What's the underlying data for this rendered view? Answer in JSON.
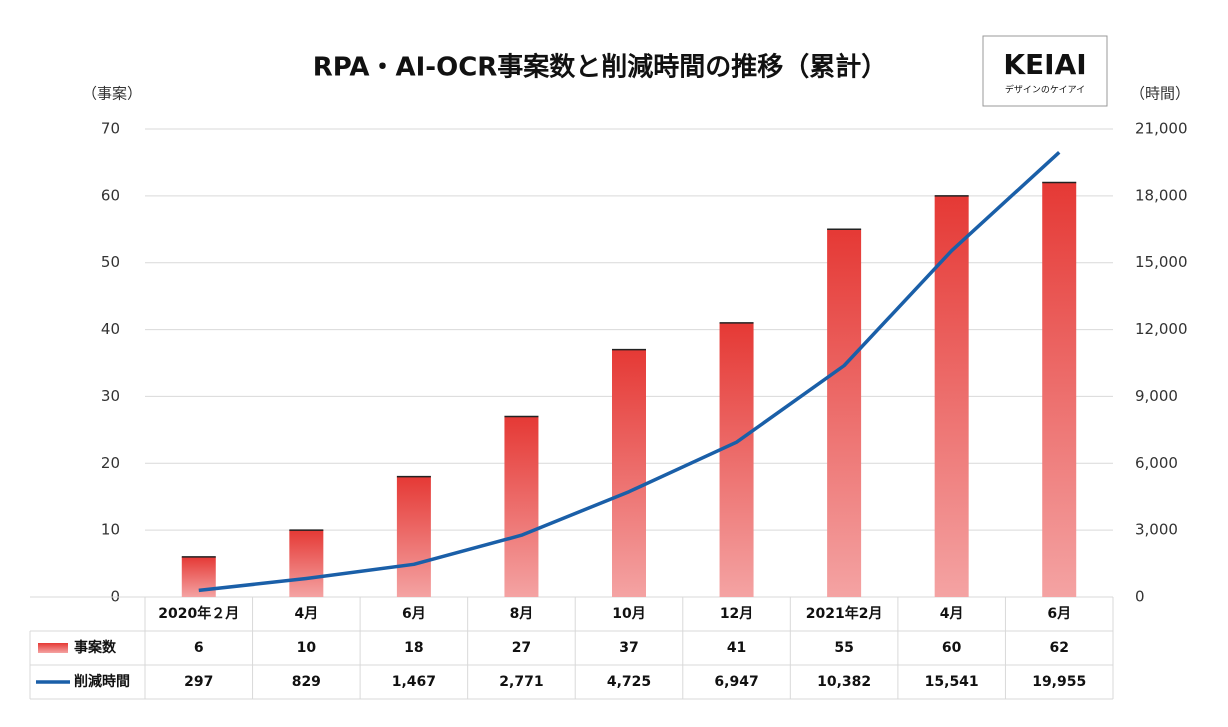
{
  "chart_data": {
    "type": "bar",
    "title": "RPA・AI-OCR事案数と削減時間の推移（累計）",
    "y_label": "（事案）",
    "y2_label": "（時間）",
    "categories": [
      "2020年２月",
      "4月",
      "6月",
      "8月",
      "10月",
      "12月",
      "2021年2月",
      "4月",
      "6月"
    ],
    "series": [
      {
        "name": "事案数",
        "type": "bar",
        "color": "#e53935",
        "values": [
          6,
          10,
          18,
          27,
          37,
          41,
          55,
          60,
          62
        ]
      },
      {
        "name": "削減時間",
        "type": "line",
        "axis": "y2",
        "color": "#1a5fa8",
        "values": [
          297,
          829,
          1467,
          2771,
          4725,
          6947,
          10382,
          15541,
          19955
        ],
        "value_labels": [
          "297",
          "829",
          "1,467",
          "2,771",
          "4,725",
          "6,947",
          "10,382",
          "15,541",
          "19,955"
        ]
      }
    ],
    "ylim": [
      0,
      70
    ],
    "yticks": [
      0,
      10,
      20,
      30,
      40,
      50,
      60,
      70
    ],
    "y2lim": [
      0,
      21000
    ],
    "y2ticks": [
      0,
      {
        "value": 3000,
        "label": "3,000"
      },
      {
        "value": 6000,
        "label": "6,000"
      },
      {
        "value": 9000,
        "label": "9,000"
      },
      {
        "value": 12000,
        "label": "12,000"
      },
      {
        "value": 15000,
        "label": "15,000"
      },
      {
        "value": 18000,
        "label": "18,000"
      },
      {
        "value": 21000,
        "label": "21,000"
      }
    ],
    "grid": true
  },
  "logo": {
    "name": "KEIAI",
    "tagline": "デザインのケイアイ"
  }
}
